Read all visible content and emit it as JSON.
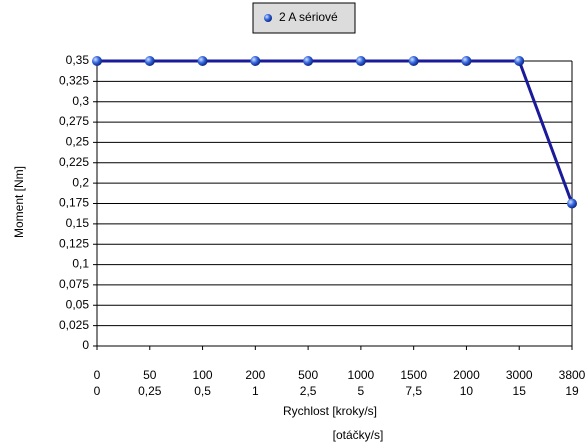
{
  "chart_data": {
    "type": "line",
    "categories": [
      [
        "0",
        "0"
      ],
      [
        "50",
        "0,25"
      ],
      [
        "100",
        "0,5"
      ],
      [
        "200",
        "1"
      ],
      [
        "500",
        "2,5"
      ],
      [
        "1000",
        "5"
      ],
      [
        "1500",
        "7,5"
      ],
      [
        "2000",
        "10"
      ],
      [
        "3000",
        "15"
      ],
      [
        "3800",
        "19"
      ]
    ],
    "series": [
      {
        "name": "2 A sériové",
        "color": "#1a1a9a",
        "values": [
          0.35,
          0.35,
          0.35,
          0.35,
          0.35,
          0.35,
          0.35,
          0.35,
          0.35,
          0.175
        ]
      }
    ],
    "xlabel": [
      "Rychlost [kroky/s]",
      "[otáčky/s]"
    ],
    "ylabel": "Moment [Nm]",
    "ylim": [
      0,
      0.35
    ],
    "yticks": [
      0,
      {
        "value": 0.025,
        "label": "0,025"
      },
      {
        "value": 0.05,
        "label": "0,05"
      },
      {
        "value": 0.075,
        "label": "0,075"
      },
      {
        "value": 0.1,
        "label": "0,1"
      },
      {
        "value": 0.125,
        "label": "0,125"
      },
      {
        "value": 0.15,
        "label": "0,15"
      },
      {
        "value": 0.175,
        "label": "0,175"
      },
      {
        "value": 0.2,
        "label": "0,2"
      },
      {
        "value": 0.225,
        "label": "0,225"
      },
      {
        "value": 0.25,
        "label": "0,25"
      },
      {
        "value": 0.275,
        "label": "0,275"
      },
      {
        "value": 0.3,
        "label": "0,3"
      },
      {
        "value": 0.325,
        "label": "0,325"
      },
      {
        "value": 0.35,
        "label": "0,35"
      }
    ],
    "grid": true
  }
}
